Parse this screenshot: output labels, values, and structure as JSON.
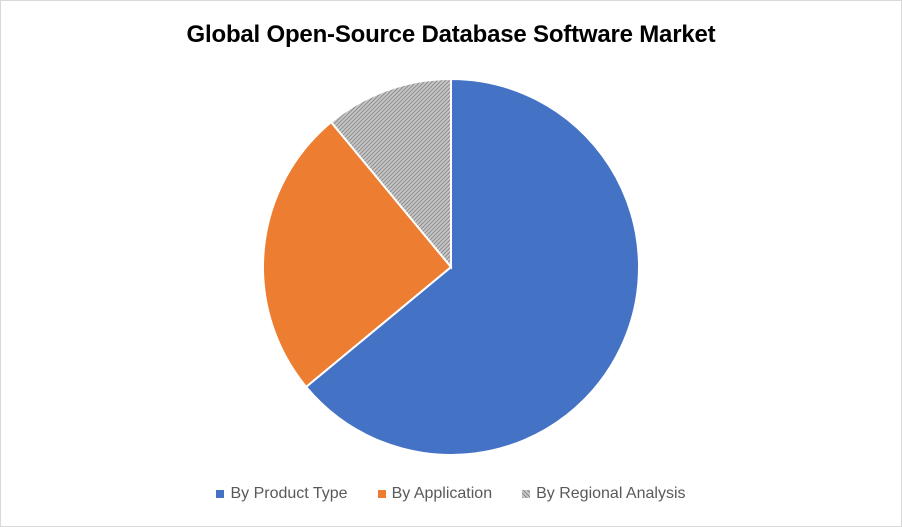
{
  "chart_data": {
    "type": "pie",
    "title": "Global Open-Source Database Software Market",
    "slices": [
      {
        "label": "By Product Type",
        "value": 64,
        "color": "#4472C4",
        "pattern": "solid"
      },
      {
        "label": "By Application",
        "value": 25,
        "color": "#ED7D31",
        "pattern": "solid"
      },
      {
        "label": "By Regional Analysis",
        "value": 11,
        "color": "#A5A5A5",
        "pattern": "hatched"
      }
    ],
    "legend_position": "bottom"
  }
}
